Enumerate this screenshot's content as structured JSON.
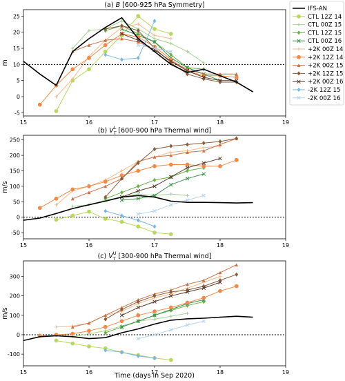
{
  "figure": {
    "xlabel": "Time (days in Sep 2020)",
    "legend_placement": "upper right, outside panels"
  },
  "legend": [
    {
      "name": "IFS-AN",
      "color": "#000000",
      "marker": "none",
      "lw": 1.6
    },
    {
      "name": "CTL 12Z 14",
      "color": "#b8d85e",
      "marker": "circle",
      "lw": 1.0
    },
    {
      "name": "CTL 00Z 15",
      "color": "#a3d490",
      "marker": "plus",
      "lw": 1.0
    },
    {
      "name": "CTL 12Z 15",
      "color": "#6ab04c",
      "marker": "diamond",
      "lw": 1.0
    },
    {
      "name": "CTL 00Z 16",
      "color": "#3a8f4a",
      "marker": "x",
      "lw": 1.0
    },
    {
      "name": "+2K 00Z 14",
      "color": "#f8b98a",
      "marker": "plus",
      "lw": 1.0
    },
    {
      "name": "+2K 12Z 14",
      "color": "#ef8a4a",
      "marker": "circle",
      "lw": 1.0
    },
    {
      "name": "+2K 00Z 15",
      "color": "#c8714a",
      "marker": "triangle",
      "lw": 1.0
    },
    {
      "name": "+2K 12Z 15",
      "color": "#8a5a3a",
      "marker": "diamond",
      "lw": 1.0
    },
    {
      "name": "+2K 00Z 16",
      "color": "#5a3a2a",
      "marker": "x",
      "lw": 1.0
    },
    {
      "name": "-2K 12Z 15",
      "color": "#7ab7e0",
      "marker": "diamond",
      "lw": 1.0
    },
    {
      "name": "-2K 00Z 16",
      "color": "#b5d3ee",
      "marker": "x",
      "lw": 1.0
    }
  ],
  "chart_data": [
    {
      "type": "line",
      "title": "(a) B [600-925 hPa Symmetry]",
      "ylabel": "m",
      "xlim": [
        15,
        19
      ],
      "ylim": [
        -6,
        27
      ],
      "xticks": [
        15,
        16,
        17,
        18,
        19
      ],
      "yticks": [
        -5,
        0,
        5,
        10,
        15,
        20,
        25
      ],
      "hline": 10,
      "series": [
        {
          "name": "IFS-AN",
          "x": [
            15,
            15.25,
            15.5,
            15.75,
            16,
            16.25,
            16.5,
            16.75,
            17,
            17.25,
            17.5,
            17.75,
            18,
            18.25,
            18.5
          ],
          "y": [
            11,
            7,
            3.5,
            14,
            18,
            21.5,
            24.5,
            18,
            14,
            10,
            7.5,
            8.5,
            6.5,
            4.5,
            1.5
          ]
        },
        {
          "name": "CTL 12Z 14",
          "x": [
            15.5,
            15.75,
            16,
            16.25,
            16.5,
            16.75,
            17,
            17.25
          ],
          "y": [
            -4.5,
            5,
            8.5,
            14,
            19,
            25,
            21,
            19.5
          ]
        },
        {
          "name": "CTL 00Z 15",
          "x": [
            15.75,
            16,
            16.25,
            16.5,
            16.75,
            17,
            17.25,
            17.5,
            17.75
          ],
          "y": [
            15,
            20.5,
            21,
            23.5,
            21,
            18,
            16.5,
            14,
            10.5
          ]
        },
        {
          "name": "CTL 12Z 15",
          "x": [
            16.25,
            16.5,
            16.75,
            17,
            17.25,
            17.5,
            17.75
          ],
          "y": [
            20.5,
            22,
            19.5,
            17,
            13,
            9,
            8.5
          ]
        },
        {
          "name": "CTL 00Z 16",
          "x": [
            16.5,
            16.75,
            17,
            17.25,
            17.5,
            17.75,
            18
          ],
          "y": [
            21,
            19,
            17,
            12,
            9,
            7,
            5
          ]
        },
        {
          "name": "+2K 00Z 14",
          "x": [
            15.5,
            15.75,
            16,
            16.25,
            16.5,
            16.75,
            17,
            17.25
          ],
          "y": [
            0,
            5.5,
            12.5,
            17.5,
            21.5,
            22.5,
            19,
            18
          ]
        },
        {
          "name": "+2K 12Z 14",
          "x": [
            15.25,
            15.5,
            15.75,
            16,
            16.25,
            16.5,
            16.75,
            17,
            17.25,
            17.5,
            17.75,
            18,
            18.25
          ],
          "y": [
            -2.5,
            3.5,
            8.5,
            12,
            16,
            19.5,
            18.5,
            15.5,
            11.5,
            8,
            6.5,
            6.5,
            6
          ]
        },
        {
          "name": "+2K 00Z 15",
          "x": [
            15.75,
            16,
            16.25,
            16.5,
            16.75,
            17,
            17.25,
            17.5,
            17.75,
            18,
            18.25
          ],
          "y": [
            14,
            16,
            17.5,
            18,
            17,
            14.5,
            11,
            8.5,
            7,
            7,
            7
          ]
        },
        {
          "name": "+2K 12Z 15",
          "x": [
            16.25,
            16.5,
            16.75,
            17,
            17.25,
            17.5,
            17.75,
            18,
            18.25
          ],
          "y": [
            21,
            22,
            20.5,
            15,
            10.5,
            7,
            5.5,
            4.5,
            4.5
          ]
        },
        {
          "name": "+2K 00Z 16",
          "x": [
            16.5,
            16.75,
            17,
            17.25,
            17.5,
            17.75,
            18,
            18.25
          ],
          "y": [
            19.5,
            17.5,
            14.5,
            11,
            8,
            6,
            5,
            5
          ]
        },
        {
          "name": "-2K 12Z 15",
          "x": [
            16.25,
            16.5,
            16.75,
            17
          ],
          "y": [
            13,
            11.5,
            12,
            23.5
          ]
        },
        {
          "name": "-2K 00Z 16",
          "x": [
            16.75,
            17,
            17.25
          ],
          "y": [
            16,
            15,
            14
          ]
        }
      ]
    },
    {
      "type": "line",
      "title": "(b) V_T^L [600-900 hPa Thermal wind]",
      "title_main": "(b) ",
      "title_sym": "V",
      "title_sub": "T",
      "title_sup": "L",
      "title_rest": " [600-900 hPa Thermal wind]",
      "ylabel": "m/s",
      "xlim": [
        15,
        19
      ],
      "ylim": [
        -70,
        265
      ],
      "xticks": [
        15,
        16,
        17,
        18,
        19
      ],
      "yticks": [
        -50,
        0,
        50,
        100,
        150,
        200,
        250
      ],
      "hline": 0,
      "series": [
        {
          "name": "IFS-AN",
          "x": [
            15,
            15.25,
            15.5,
            15.75,
            16,
            16.25,
            16.5,
            16.75,
            17,
            17.25,
            17.5,
            17.75,
            18,
            18.25,
            18.5
          ],
          "y": [
            -10,
            -3,
            12,
            28,
            40,
            52,
            65,
            70,
            65,
            52,
            48,
            48,
            47,
            46,
            47
          ]
        },
        {
          "name": "CTL 12Z 14",
          "x": [
            15.5,
            15.75,
            16,
            16.25,
            16.5,
            16.75,
            17,
            17.25
          ],
          "y": [
            -8,
            5,
            18,
            -5,
            -15,
            -30,
            -50,
            -55
          ]
        },
        {
          "name": "CTL 00Z 15",
          "x": [
            15.75,
            16,
            16.25,
            16.5,
            16.75,
            17,
            17.25,
            17.5
          ],
          "y": [
            35,
            40,
            55,
            65,
            75,
            70,
            75,
            70
          ]
        },
        {
          "name": "CTL 12Z 15",
          "x": [
            16.25,
            16.5,
            16.75,
            17,
            17.25,
            17.5,
            17.75
          ],
          "y": [
            60,
            80,
            100,
            120,
            130,
            150,
            160
          ]
        },
        {
          "name": "CTL 00Z 16",
          "x": [
            16.5,
            16.75,
            17,
            17.25,
            17.5,
            17.75
          ],
          "y": [
            55,
            60,
            70,
            105,
            125,
            140
          ]
        },
        {
          "name": "+2K 00Z 14",
          "x": [
            15.5,
            15.75,
            16,
            16.25,
            16.5,
            16.75,
            17,
            17.25,
            17.5,
            17.75,
            18
          ],
          "y": [
            40,
            85,
            100,
            120,
            150,
            180,
            195,
            210,
            215,
            225,
            230
          ]
        },
        {
          "name": "+2K 12Z 14",
          "x": [
            15.25,
            15.5,
            15.75,
            16,
            16.25,
            16.5,
            16.75,
            17,
            17.25,
            17.5,
            17.75,
            18,
            18.25
          ],
          "y": [
            30,
            60,
            90,
            100,
            115,
            135,
            150,
            165,
            170,
            170,
            165,
            165,
            185
          ]
        },
        {
          "name": "+2K 00Z 15",
          "x": [
            15.75,
            16,
            16.25,
            16.5,
            16.75,
            17,
            17.25,
            17.5,
            17.75,
            18,
            18.25
          ],
          "y": [
            60,
            80,
            100,
            125,
            180,
            195,
            200,
            210,
            215,
            235,
            255
          ]
        },
        {
          "name": "+2K 12Z 15",
          "x": [
            16.25,
            16.5,
            16.75,
            17,
            17.25,
            17.5,
            17.75,
            18,
            18.25
          ],
          "y": [
            65,
            125,
            175,
            220,
            230,
            235,
            240,
            245,
            255
          ]
        },
        {
          "name": "+2K 00Z 16",
          "x": [
            16.5,
            16.75,
            17,
            17.25,
            17.5,
            17.75,
            18
          ],
          "y": [
            65,
            85,
            100,
            130,
            160,
            175,
            190
          ]
        },
        {
          "name": "-2K 12Z 15",
          "x": [
            16.25,
            16.5,
            16.75,
            17
          ],
          "y": [
            20,
            5,
            -10,
            -30
          ]
        },
        {
          "name": "-2K 00Z 16",
          "x": [
            16.75,
            17,
            17.25,
            17.5,
            17.75
          ],
          "y": [
            10,
            20,
            40,
            55,
            70
          ]
        }
      ]
    },
    {
      "type": "line",
      "title": "(c) V_T^U [300-900 hPa Thermal wind]",
      "title_main": "(c) ",
      "title_sym": "V",
      "title_sub": "T",
      "title_sup": "U",
      "title_rest": " [300-900 hPa Thermal wind]",
      "ylabel": "m/s",
      "xlim": [
        15,
        19
      ],
      "ylim": [
        -160,
        380
      ],
      "xticks": [
        15,
        16,
        17,
        18,
        19
      ],
      "yticks": [
        -100,
        0,
        100,
        200,
        300
      ],
      "hline": 0,
      "series": [
        {
          "name": "IFS-AN",
          "x": [
            15,
            15.25,
            15.5,
            15.75,
            16,
            16.25,
            16.5,
            16.75,
            17,
            17.25,
            17.5,
            17.75,
            18,
            18.25,
            18.5
          ],
          "y": [
            -30,
            -10,
            -5,
            -10,
            -20,
            -15,
            10,
            30,
            55,
            75,
            82,
            85,
            90,
            95,
            90
          ]
        },
        {
          "name": "CTL 12Z 14",
          "x": [
            15.5,
            15.75,
            16,
            16.25,
            16.5,
            16.75,
            17,
            17.25
          ],
          "y": [
            -30,
            -45,
            -60,
            -70,
            -90,
            -105,
            -120,
            -130
          ]
        },
        {
          "name": "CTL 00Z 15",
          "x": [
            15.75,
            16,
            16.25,
            16.5,
            16.75,
            17,
            17.25,
            17.5
          ],
          "y": [
            -10,
            5,
            20,
            45,
            70,
            80,
            95,
            110
          ]
        },
        {
          "name": "CTL 12Z 15",
          "x": [
            16.25,
            16.5,
            16.75,
            17,
            17.25,
            17.5,
            17.75
          ],
          "y": [
            10,
            40,
            70,
            100,
            125,
            150,
            170
          ]
        },
        {
          "name": "CTL 00Z 16",
          "x": [
            16.5,
            16.75,
            17,
            17.25,
            17.5,
            17.75
          ],
          "y": [
            40,
            70,
            100,
            130,
            160,
            180
          ]
        },
        {
          "name": "+2K 00Z 14",
          "x": [
            15.5,
            15.75,
            16,
            16.25,
            16.5,
            16.75,
            17,
            17.25,
            17.5,
            17.75,
            18
          ],
          "y": [
            40,
            45,
            60,
            100,
            120,
            160,
            190,
            210,
            240,
            270,
            300
          ]
        },
        {
          "name": "+2K 12Z 14",
          "x": [
            15.25,
            15.5,
            15.75,
            16,
            16.25,
            16.5,
            16.75,
            17,
            17.25,
            17.5,
            17.75,
            18,
            18.25
          ],
          "y": [
            -5,
            0,
            5,
            20,
            40,
            70,
            100,
            120,
            140,
            165,
            190,
            225,
            250
          ]
        },
        {
          "name": "+2K 00Z 15",
          "x": [
            15.75,
            16,
            16.25,
            16.5,
            16.75,
            17,
            17.25,
            17.5,
            17.75,
            18,
            18.25
          ],
          "y": [
            40,
            60,
            100,
            140,
            180,
            210,
            230,
            260,
            280,
            320,
            360
          ]
        },
        {
          "name": "+2K 12Z 15",
          "x": [
            16.25,
            16.5,
            16.75,
            17,
            17.25,
            17.5,
            17.75,
            18,
            18.25
          ],
          "y": [
            80,
            130,
            170,
            200,
            220,
            230,
            250,
            280,
            310
          ]
        },
        {
          "name": "+2K 00Z 16",
          "x": [
            16.5,
            16.75,
            17,
            17.25,
            17.5,
            17.75,
            18
          ],
          "y": [
            100,
            140,
            170,
            200,
            220,
            240,
            270
          ]
        },
        {
          "name": "-2K 12Z 15",
          "x": [
            16.25,
            16.5,
            16.75,
            17
          ],
          "y": [
            -80,
            -90,
            -110,
            -120
          ]
        },
        {
          "name": "-2K 00Z 16",
          "x": [
            16.75,
            17,
            17.25,
            17.5,
            17.75
          ],
          "y": [
            -20,
            0,
            25,
            50,
            70
          ]
        }
      ]
    }
  ]
}
